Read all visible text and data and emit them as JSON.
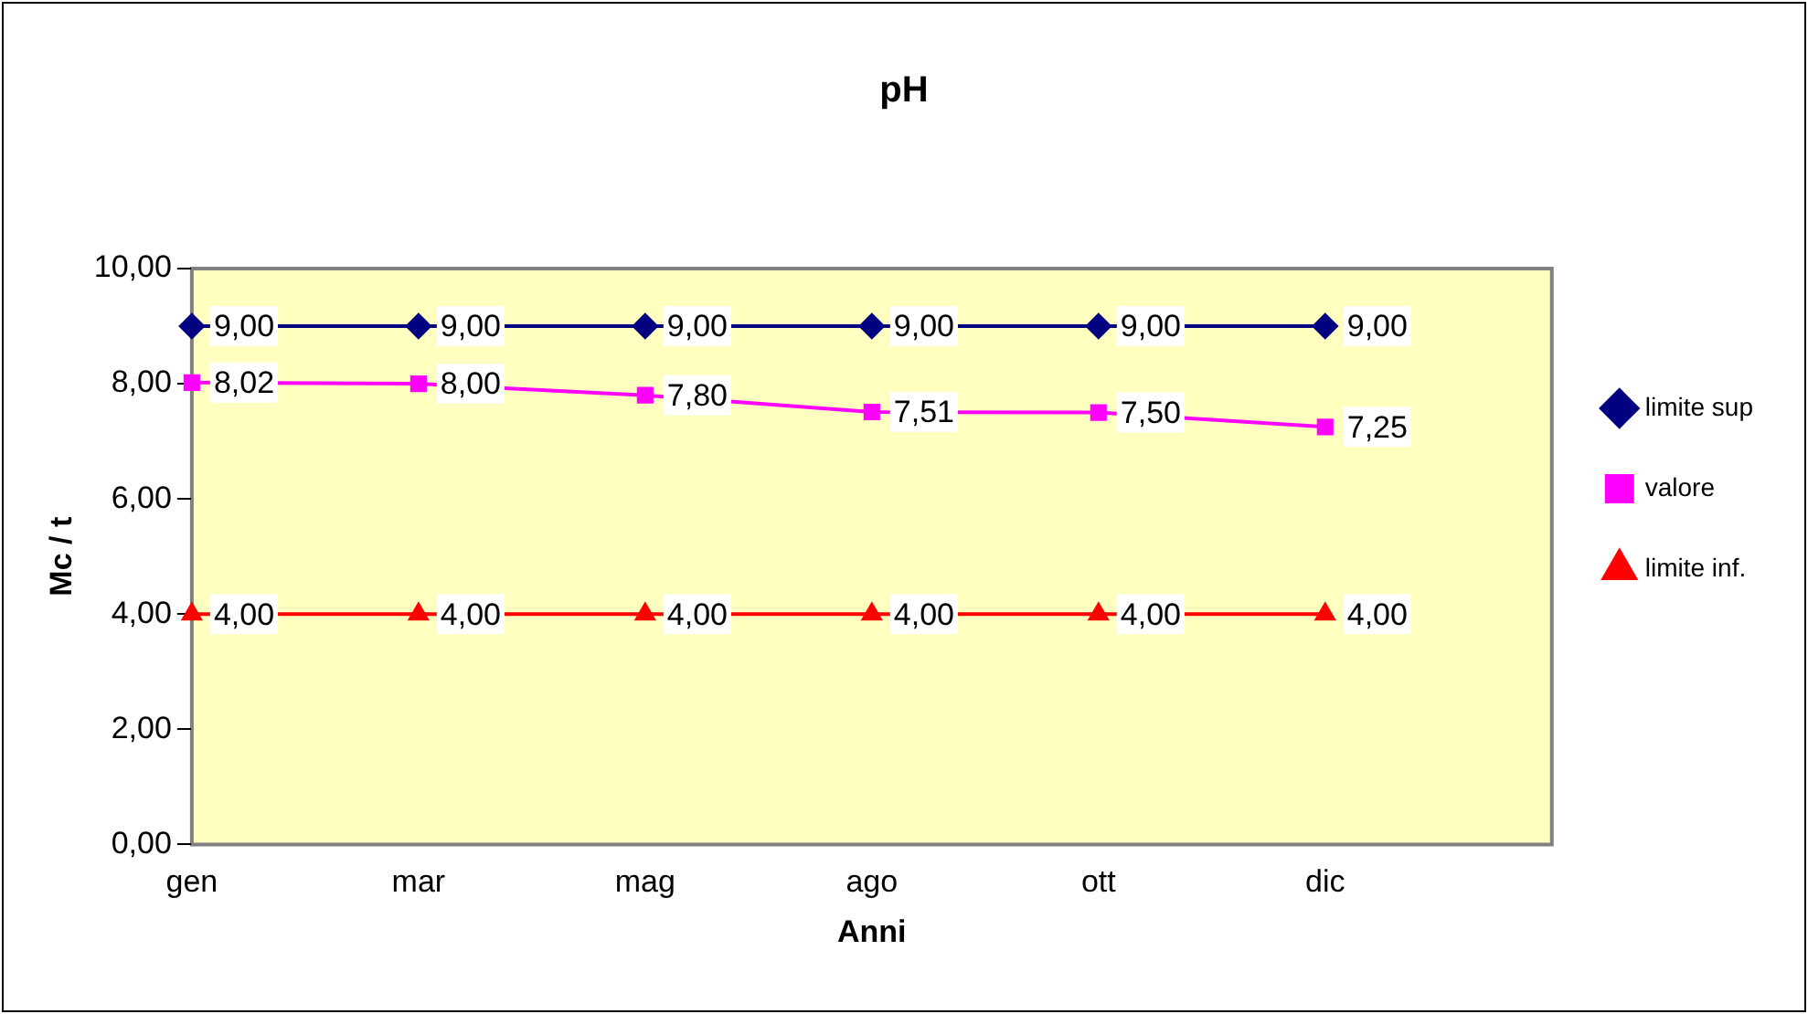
{
  "chart_data": {
    "type": "line",
    "title": "pH",
    "xlabel": "Anni",
    "ylabel": "Mc / t",
    "categories": [
      "gen",
      "mar",
      "mag",
      "ago",
      "ott",
      "dic",
      null
    ],
    "series": [
      {
        "name": "limite sup",
        "color": "#000080",
        "marker": "diamond",
        "values": [
          9,
          9,
          9,
          9,
          9,
          9,
          null
        ],
        "value_labels": [
          "9,00",
          "9,00",
          "9,00",
          "9,00",
          "9,00",
          "9,00",
          null
        ]
      },
      {
        "name": "valore",
        "color": "#ff00ff",
        "marker": "square",
        "values": [
          8.02,
          8,
          7.8,
          7.51,
          7.5,
          7.25,
          null
        ],
        "value_labels": [
          "8,02",
          "8,00",
          "7,80",
          "7,51",
          "7,50",
          "7,25",
          null
        ]
      },
      {
        "name": "limite inf.",
        "color": "#ff0000",
        "marker": "triangle",
        "values": [
          4,
          4,
          4,
          4,
          4,
          4,
          null
        ],
        "value_labels": [
          "4,00",
          "4,00",
          "4,00",
          "4,00",
          "4,00",
          "4,00",
          null
        ]
      }
    ],
    "ylim": [
      0,
      10
    ],
    "yticks": [
      {
        "value": 0,
        "label": "0,00"
      },
      {
        "value": 2,
        "label": "2,00"
      },
      {
        "value": 4,
        "label": "4,00"
      },
      {
        "value": 6,
        "label": "6,00"
      },
      {
        "value": 8,
        "label": "8,00"
      },
      {
        "value": 10,
        "label": "10,00"
      }
    ],
    "grid": false,
    "legend": "right",
    "line_style": "solid"
  }
}
